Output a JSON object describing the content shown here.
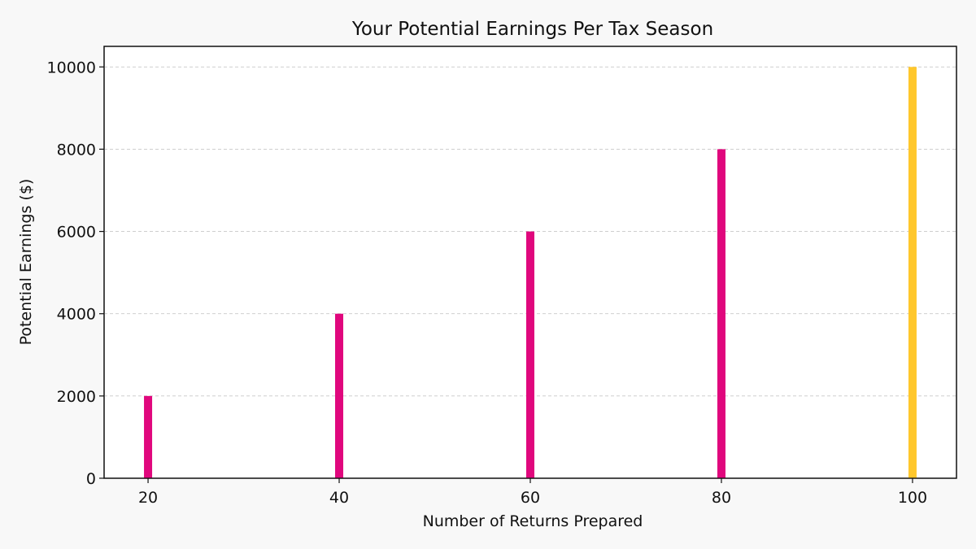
{
  "chart_data": {
    "type": "bar",
    "title": "Your Potential Earnings Per Tax Season",
    "xlabel": "Number of Returns Prepared",
    "ylabel": "Potential Earnings ($)",
    "x": [
      20,
      40,
      60,
      80,
      100
    ],
    "values": [
      2000,
      4000,
      6000,
      8000,
      10000
    ],
    "bar_colors": [
      "#e0077d",
      "#e0077d",
      "#e0077d",
      "#e0077d",
      "#ffc72c"
    ],
    "xticks": [
      20,
      40,
      60,
      80,
      100
    ],
    "xtick_labels": [
      "20",
      "40",
      "60",
      "80",
      "100"
    ],
    "yticks": [
      0,
      2000,
      4000,
      6000,
      8000,
      10000
    ],
    "ytick_labels": [
      "0",
      "2000",
      "4000",
      "6000",
      "8000",
      "10000"
    ],
    "xlim": [
      15.4,
      104.6
    ],
    "ylim": [
      0,
      10500
    ],
    "grid": "y-dashed",
    "legend": "none",
    "background": "#f8f8f8",
    "plot_background": "#ffffff"
  }
}
